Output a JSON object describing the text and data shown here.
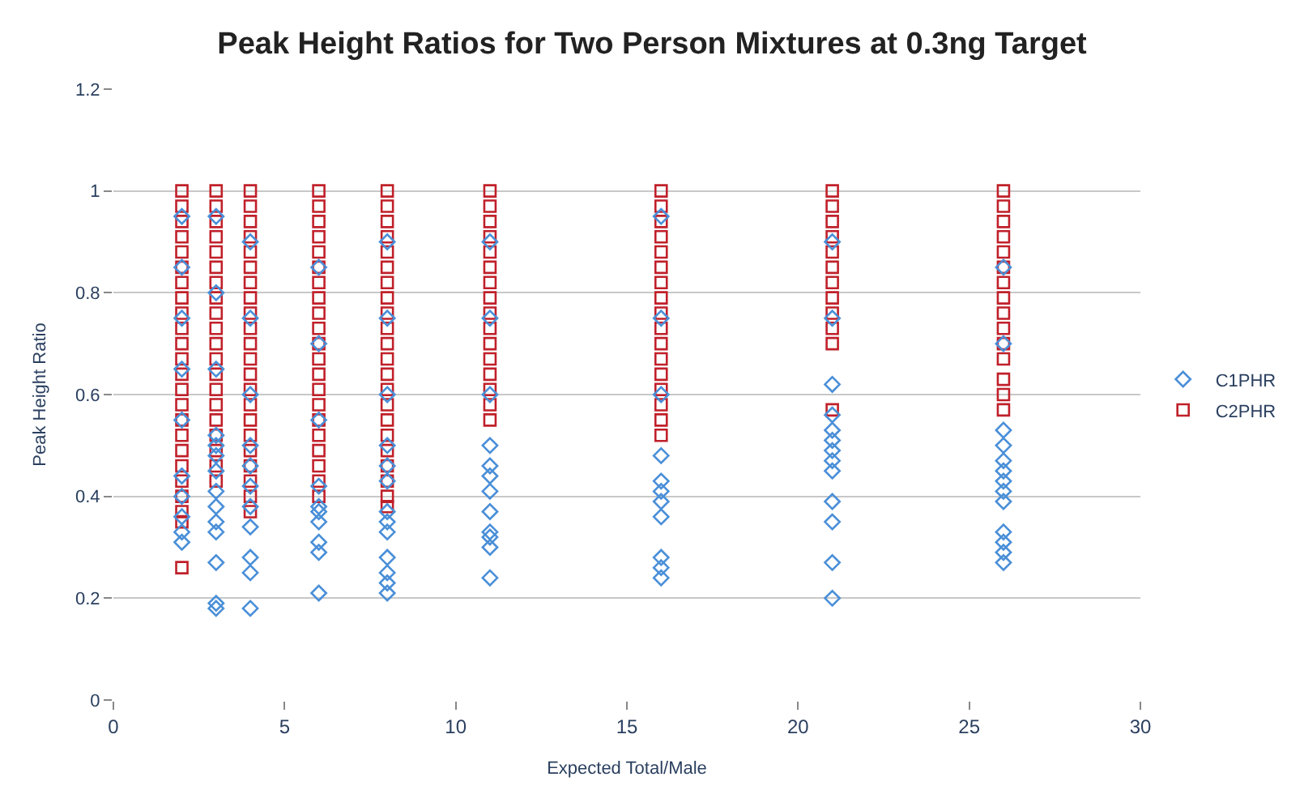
{
  "chart_data": {
    "type": "scatter",
    "title": "Peak Height Ratios for Two Person Mixtures at 0.3ng Target",
    "xlabel": "Expected Total/Male",
    "ylabel": "Peak Height Ratio",
    "xlim": [
      0,
      30
    ],
    "xticks": [
      0,
      5,
      10,
      15,
      20,
      25,
      30
    ],
    "ylim": [
      0,
      1.2
    ],
    "yticks": [
      0,
      0.2,
      0.4,
      0.6,
      0.8,
      1,
      1.2
    ],
    "grid": "y",
    "legend": "right",
    "series": [
      {
        "name": "C1PHR",
        "color": "#4a8fd8",
        "marker": "diamond",
        "x": [
          2,
          2,
          2,
          2,
          2,
          2,
          2,
          2,
          2,
          2,
          3,
          3,
          3,
          3,
          3,
          3,
          3,
          3,
          3,
          3,
          3,
          3,
          3,
          3,
          4,
          4,
          4,
          4,
          4,
          4,
          4,
          4,
          4,
          4,
          4,
          6,
          6,
          6,
          6,
          6,
          6,
          6,
          6,
          6,
          6,
          8,
          8,
          8,
          8,
          8,
          8,
          8,
          8,
          8,
          8,
          8,
          8,
          8,
          11,
          11,
          11,
          11,
          11,
          11,
          11,
          11,
          11,
          11,
          11,
          11,
          16,
          16,
          16,
          16,
          16,
          16,
          16,
          16,
          16,
          16,
          16,
          21,
          21,
          21,
          21,
          21,
          21,
          21,
          21,
          21,
          21,
          21,
          21,
          21,
          26,
          26,
          26,
          26,
          26,
          26,
          26,
          26,
          26,
          26,
          26,
          26,
          26
        ],
        "values": [
          0.31,
          0.33,
          0.36,
          0.4,
          0.44,
          0.55,
          0.65,
          0.75,
          0.85,
          0.95,
          0.18,
          0.19,
          0.27,
          0.33,
          0.35,
          0.38,
          0.41,
          0.45,
          0.48,
          0.5,
          0.52,
          0.65,
          0.8,
          0.95,
          0.18,
          0.25,
          0.28,
          0.34,
          0.38,
          0.42,
          0.46,
          0.5,
          0.6,
          0.75,
          0.9,
          0.21,
          0.29,
          0.31,
          0.35,
          0.37,
          0.38,
          0.42,
          0.55,
          0.7,
          0.85,
          0.21,
          0.23,
          0.25,
          0.28,
          0.33,
          0.35,
          0.37,
          0.43,
          0.46,
          0.5,
          0.6,
          0.75,
          0.9,
          0.24,
          0.3,
          0.32,
          0.33,
          0.37,
          0.41,
          0.44,
          0.46,
          0.5,
          0.6,
          0.75,
          0.9,
          0.24,
          0.26,
          0.28,
          0.36,
          0.39,
          0.41,
          0.43,
          0.48,
          0.6,
          0.75,
          0.95,
          0.2,
          0.27,
          0.35,
          0.39,
          0.45,
          0.47,
          0.49,
          0.51,
          0.53,
          0.56,
          0.62,
          0.75,
          0.9,
          0.27,
          0.29,
          0.31,
          0.33,
          0.39,
          0.41,
          0.43,
          0.45,
          0.47,
          0.5,
          0.53,
          0.7,
          0.85
        ]
      },
      {
        "name": "C2PHR",
        "color": "#c0202a",
        "marker": "square",
        "x": [
          2,
          2,
          2,
          2,
          2,
          2,
          2,
          2,
          2,
          2,
          2,
          2,
          2,
          2,
          2,
          2,
          2,
          2,
          2,
          2,
          2,
          2,
          2,
          2,
          3,
          3,
          3,
          3,
          3,
          3,
          3,
          3,
          3,
          3,
          3,
          3,
          3,
          3,
          3,
          3,
          3,
          3,
          3,
          3,
          4,
          4,
          4,
          4,
          4,
          4,
          4,
          4,
          4,
          4,
          4,
          4,
          4,
          4,
          4,
          4,
          4,
          4,
          4,
          4,
          4,
          4,
          6,
          6,
          6,
          6,
          6,
          6,
          6,
          6,
          6,
          6,
          6,
          6,
          6,
          6,
          6,
          6,
          6,
          6,
          6,
          6,
          6,
          8,
          8,
          8,
          8,
          8,
          8,
          8,
          8,
          8,
          8,
          8,
          8,
          8,
          8,
          8,
          8,
          8,
          8,
          8,
          8,
          8,
          8,
          11,
          11,
          11,
          11,
          11,
          11,
          11,
          11,
          11,
          11,
          11,
          11,
          11,
          11,
          11,
          11,
          16,
          16,
          16,
          16,
          16,
          16,
          16,
          16,
          16,
          16,
          16,
          16,
          16,
          16,
          16,
          16,
          16,
          21,
          21,
          21,
          21,
          21,
          21,
          21,
          21,
          21,
          21,
          21,
          21,
          26,
          26,
          26,
          26,
          26,
          26,
          26,
          26,
          26,
          26,
          26,
          26,
          26,
          26,
          26
        ],
        "values": [
          1,
          0.97,
          0.94,
          0.91,
          0.88,
          0.85,
          0.82,
          0.79,
          0.76,
          0.73,
          0.7,
          0.67,
          0.64,
          0.61,
          0.58,
          0.55,
          0.52,
          0.49,
          0.46,
          0.43,
          0.4,
          0.37,
          0.35,
          0.26,
          1,
          0.97,
          0.94,
          0.91,
          0.88,
          0.85,
          0.82,
          0.79,
          0.76,
          0.73,
          0.7,
          0.67,
          0.64,
          0.61,
          0.58,
          0.55,
          0.52,
          0.49,
          0.46,
          0.43,
          1,
          0.97,
          0.94,
          0.91,
          0.88,
          0.85,
          0.82,
          0.79,
          0.76,
          0.73,
          0.7,
          0.67,
          0.64,
          0.61,
          0.58,
          0.55,
          0.52,
          0.49,
          0.46,
          0.43,
          0.4,
          0.37,
          1,
          0.97,
          0.94,
          0.91,
          0.88,
          0.85,
          0.82,
          0.79,
          0.76,
          0.73,
          0.7,
          0.67,
          0.64,
          0.61,
          0.58,
          0.55,
          0.52,
          0.49,
          0.46,
          0.43,
          0.4,
          1,
          0.97,
          0.94,
          0.91,
          0.88,
          0.85,
          0.82,
          0.79,
          0.76,
          0.73,
          0.7,
          0.67,
          0.64,
          0.61,
          0.58,
          0.55,
          0.52,
          0.49,
          0.46,
          0.43,
          0.4,
          0.38,
          1,
          0.97,
          0.94,
          0.91,
          0.88,
          0.85,
          0.82,
          0.79,
          0.76,
          0.73,
          0.7,
          0.67,
          0.64,
          0.61,
          0.58,
          0.55,
          1,
          0.97,
          0.94,
          0.91,
          0.88,
          0.85,
          0.82,
          0.79,
          0.76,
          0.73,
          0.7,
          0.67,
          0.64,
          0.61,
          0.58,
          0.55,
          0.52,
          1,
          0.97,
          0.94,
          0.91,
          0.88,
          0.85,
          0.82,
          0.79,
          0.76,
          0.73,
          0.7,
          0.57,
          1,
          0.97,
          0.94,
          0.91,
          0.88,
          0.85,
          0.82,
          0.79,
          0.76,
          0.73,
          0.7,
          0.67,
          0.63,
          0.6,
          0.57
        ]
      }
    ]
  }
}
